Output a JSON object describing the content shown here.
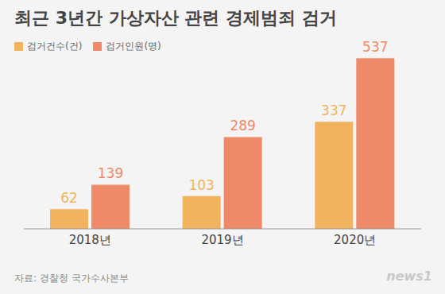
{
  "chart_data": {
    "type": "bar",
    "title": "최근 3년간 가상자산 관련 경제범죄 검거",
    "categories": [
      "2018년",
      "2019년",
      "2020년"
    ],
    "series": [
      {
        "name": "검거건수(건)",
        "color": "#f2b35e",
        "values": [
          62,
          103,
          337
        ]
      },
      {
        "name": "검거인원(명)",
        "color": "#ee8a68",
        "values": [
          139,
          289,
          537
        ]
      }
    ],
    "ylim": [
      0,
      580
    ],
    "grid": false,
    "data_labels": true,
    "tick_labels": "x",
    "legend": "top-left",
    "source": "자료: 경찰청 국가수사본부",
    "credit": "news1"
  }
}
